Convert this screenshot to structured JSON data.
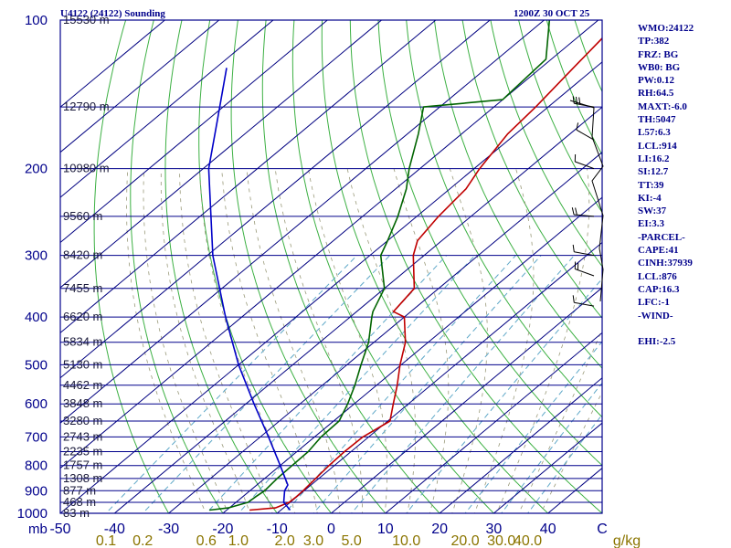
{
  "header": {
    "station": "U4122 (24122) Sounding",
    "time": "1200Z 30 OCT 25"
  },
  "indices": [
    "WMO:24122",
    "TP:382",
    "FRZ: BG",
    "WB0: BG",
    "PW:0.12",
    "RH:64.5",
    "MAXT:-6.0",
    "TH:5047",
    "L57:6.3",
    "LCL:914",
    "LI:16.2",
    "SI:12.7",
    "TT:39",
    "KI:-4",
    "SW:37",
    "EI:3.3",
    "-PARCEL-",
    "CAPE:41",
    "CINH:37939",
    "LCL:876",
    "CAP:16.3",
    "LFC:-1",
    "-WIND-",
    "",
    "EHI:-2.5"
  ],
  "colors": {
    "frame": "#00008b",
    "isobar": "#00008b",
    "isotherm": "#000080",
    "dry_adiabat": "#3cb043",
    "moist_adiabat": "#9a9a7a",
    "mixing_ratio": "#5fa8c8",
    "temperature": "#c00000",
    "dewpoint": "#006400",
    "parcel": "#0000c8",
    "wind": "#000000",
    "mixing_label": "#8b7500"
  },
  "chart_data": {
    "type": "skew-t",
    "xlabel_unit": "mb",
    "mixing_ratio_unit": "g/kg",
    "pressure_axis": {
      "range": [
        1000,
        100
      ],
      "scale": "log",
      "ticks": [
        100,
        200,
        300,
        400,
        500,
        600,
        700,
        800,
        900,
        1000
      ]
    },
    "temperature_axis": {
      "range": [
        -50,
        50
      ],
      "ticks": [
        -50,
        -40,
        -30,
        -20,
        -10,
        0,
        10,
        20,
        30,
        40,
        50
      ]
    },
    "temperature_tick_labels": [
      "-50",
      "-40",
      "-30",
      "-20",
      "-10",
      "0",
      "10",
      "20",
      "30",
      "40",
      "C"
    ],
    "mixing_ratio_labels": [
      {
        "label": "0.1",
        "value": 0.1
      },
      {
        "label": "0.2",
        "value": 0.2
      },
      {
        "label": "0.6",
        "value": 0.6
      },
      {
        "label": "1.0",
        "value": 1.0
      },
      {
        "label": "2.0",
        "value": 2.0
      },
      {
        "label": "3.0",
        "value": 3.0
      },
      {
        "label": "5.0",
        "value": 5.0
      },
      {
        "label": "10.0",
        "value": 10.0
      },
      {
        "label": "20.0",
        "value": 20.0
      },
      {
        "label": "30.0",
        "value": 30.0
      },
      {
        "label": "40.0",
        "value": 40.0
      }
    ],
    "height_labels": [
      {
        "p": 100,
        "label": "15530 m"
      },
      {
        "p": 150,
        "label": "12790 m"
      },
      {
        "p": 200,
        "label": "10980 m"
      },
      {
        "p": 250,
        "label": "9560 m"
      },
      {
        "p": 300,
        "label": "8420 m"
      },
      {
        "p": 350,
        "label": "7455 m"
      },
      {
        "p": 400,
        "label": "6620 m"
      },
      {
        "p": 450,
        "label": "5834 m"
      },
      {
        "p": 500,
        "label": "5130 m"
      },
      {
        "p": 550,
        "label": "4462 m"
      },
      {
        "p": 600,
        "label": "3848 m"
      },
      {
        "p": 650,
        "label": "3280 m"
      },
      {
        "p": 700,
        "label": "2743 m"
      },
      {
        "p": 750,
        "label": "2235 m"
      },
      {
        "p": 800,
        "label": "1757 m"
      },
      {
        "p": 850,
        "label": "1308 m"
      },
      {
        "p": 900,
        "label": "877 m"
      },
      {
        "p": 950,
        "label": "468 m"
      },
      {
        "p": 1000,
        "label": "83 m"
      }
    ],
    "series": [
      {
        "key": "temperature",
        "points": [
          [
            985,
            -15.8
          ],
          [
            975,
            -11.5
          ],
          [
            950,
            -10.2
          ],
          [
            925,
            -10.1
          ],
          [
            900,
            -10.2
          ],
          [
            850,
            -10.6
          ],
          [
            800,
            -11.0
          ],
          [
            750,
            -11.2
          ],
          [
            700,
            -11.1
          ],
          [
            650,
            -9.6
          ],
          [
            600,
            -12.8
          ],
          [
            550,
            -16.2
          ],
          [
            500,
            -20.2
          ],
          [
            450,
            -24.2
          ],
          [
            400,
            -30.0
          ],
          [
            390,
            -33.2
          ],
          [
            350,
            -34.5
          ],
          [
            300,
            -42.0
          ],
          [
            280,
            -44.5
          ],
          [
            250,
            -46.0
          ],
          [
            220,
            -47.0
          ],
          [
            200,
            -49.0
          ],
          [
            170,
            -51.5
          ],
          [
            150,
            -52.3
          ],
          [
            125,
            -54.0
          ],
          [
            100,
            -56.0
          ]
        ]
      },
      {
        "key": "dewpoint",
        "points": [
          [
            985,
            -23.2
          ],
          [
            975,
            -20.2
          ],
          [
            950,
            -17.8
          ],
          [
            925,
            -17.6
          ],
          [
            900,
            -17.3
          ],
          [
            850,
            -17.7
          ],
          [
            800,
            -17.8
          ],
          [
            750,
            -17.9
          ],
          [
            700,
            -18.8
          ],
          [
            650,
            -19.0
          ],
          [
            600,
            -21.2
          ],
          [
            550,
            -24.0
          ],
          [
            500,
            -27.4
          ],
          [
            450,
            -31.0
          ],
          [
            400,
            -36.0
          ],
          [
            390,
            -37.0
          ],
          [
            350,
            -40.0
          ],
          [
            300,
            -48.0
          ],
          [
            280,
            -50.0
          ],
          [
            250,
            -53.5
          ],
          [
            220,
            -58.0
          ],
          [
            200,
            -62.0
          ],
          [
            170,
            -68.0
          ],
          [
            150,
            -73.0
          ],
          [
            145,
            -60.0
          ],
          [
            120,
            -61.0
          ],
          [
            100,
            -69.0
          ]
        ]
      },
      {
        "key": "parcel",
        "points": [
          [
            985,
            -8.3
          ],
          [
            950,
            -11.2
          ],
          [
            900,
            -13.6
          ],
          [
            876,
            -14.3
          ],
          [
            850,
            -16.2
          ],
          [
            800,
            -20.0
          ],
          [
            700,
            -28.5
          ],
          [
            600,
            -38.5
          ],
          [
            500,
            -50.0
          ],
          [
            400,
            -63.0
          ],
          [
            300,
            -79.0
          ],
          [
            200,
            -99.0
          ],
          [
            160,
            -108.0
          ],
          [
            125,
            -118.0
          ]
        ]
      }
    ],
    "wind_barbs": [
      {
        "p": 150,
        "dir": 280,
        "speed_kt": 25
      },
      {
        "p": 175,
        "dir": 300,
        "speed_kt": 10
      },
      {
        "p": 200,
        "dir": 290,
        "speed_kt": 5
      },
      {
        "p": 250,
        "dir": 275,
        "speed_kt": 15
      },
      {
        "p": 300,
        "dir": 280,
        "speed_kt": 10
      },
      {
        "p": 330,
        "dir": 290,
        "speed_kt": 15
      },
      {
        "p": 380,
        "dir": 280,
        "speed_kt": 5
      }
    ]
  }
}
